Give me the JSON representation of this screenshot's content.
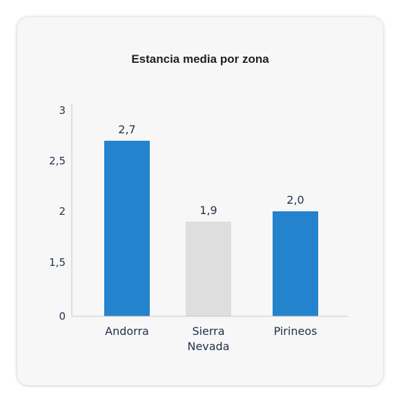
{
  "chart_data": {
    "type": "bar",
    "title": "Estancia media por zona",
    "xlabel": "",
    "ylabel": "",
    "categories": [
      "Andorra",
      "Sierra Nevada",
      "Pirineos"
    ],
    "category_lines": [
      [
        "Andorra"
      ],
      [
        "Sierra",
        "Nevada"
      ],
      [
        "Pirineos"
      ]
    ],
    "values": [
      2.7,
      1.9,
      2.0
    ],
    "value_labels": [
      "2,7",
      "1,9",
      "2,0"
    ],
    "bar_colors": [
      "#2383cc",
      "#dedede",
      "#2383cc"
    ],
    "yticks": [
      {
        "value": 0,
        "label": "0"
      },
      {
        "value": 1.5,
        "label": "1,5"
      },
      {
        "value": 2,
        "label": "2"
      },
      {
        "value": 2.5,
        "label": "2,5"
      },
      {
        "value": 3,
        "label": "3"
      }
    ],
    "grid": false,
    "legend": "none"
  }
}
